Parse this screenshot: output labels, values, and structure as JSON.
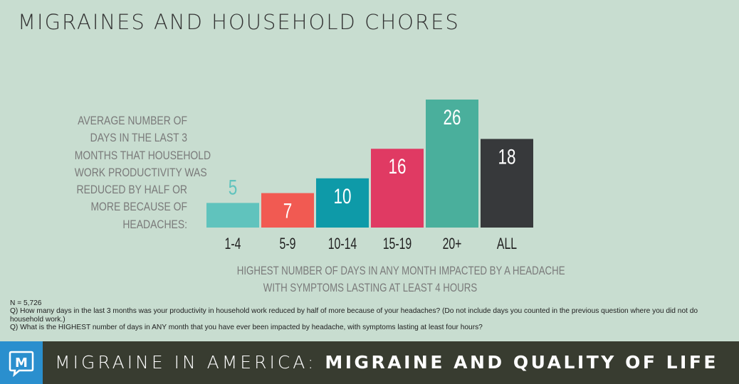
{
  "title": "MIGRAINES AND HOUSEHOLD CHORES",
  "y_label_lines": [
    "AVERAGE NUMBER OF",
    "DAYS IN THE LAST 3",
    "MONTHS THAT HOUSEHOLD",
    "WORK PRODUCTIVITY WAS",
    "REDUCED BY HALF OR",
    "MORE BECAUSE OF",
    "HEADACHES:"
  ],
  "x_label_lines": [
    "HIGHEST NUMBER OF DAYS IN ANY MONTH IMPACTED BY A HEADACHE",
    "WITH SYMPTOMS LASTING AT LEAST 4 HOURS"
  ],
  "chart_data": {
    "type": "bar",
    "categories": [
      "1-4",
      "5-9",
      "10-14",
      "15-19",
      "20+",
      "ALL"
    ],
    "values": [
      5,
      7,
      10,
      16,
      26,
      18
    ],
    "bar_colors": [
      "#60c3bd",
      "#f15a52",
      "#0e9aa8",
      "#e03a63",
      "#4aaf9c",
      "#37393b"
    ],
    "label_colors": [
      "#60c3bd",
      "#ffffff",
      "#ffffff",
      "#ffffff",
      "#ffffff",
      "#ffffff"
    ],
    "xlabel": "HIGHEST NUMBER OF DAYS IN ANY MONTH IMPACTED BY A HEADACHE WITH SYMPTOMS LASTING AT LEAST 4 HOURS",
    "ylabel": "AVERAGE NUMBER OF DAYS IN THE LAST 3 MONTHS THAT HOUSEHOLD WORK PRODUCTIVITY WAS REDUCED BY HALF OR MORE BECAUSE OF HEADACHES:",
    "ylim": [
      0,
      26
    ],
    "grid": false,
    "legend": "none"
  },
  "notes": {
    "n": "N = 5,726",
    "q1": "Q) How many days in the last 3 months was your productivity in household work reduced by half of more because of your headaches? (Do not include days you counted in the previous question where you did not do household work.)",
    "q2": "Q) What is the HIGHEST number of days in ANY month that you have ever been impacted by headache, with symptoms lasting at least four hours?"
  },
  "footer": {
    "logo_letter": "M",
    "series_label": "MIGRAINE IN AMERICA:",
    "topic": "MIGRAINE AND QUALITY OF LIFE"
  },
  "colors": {
    "background": "#c8ddd0",
    "footer_bg": "#383c30",
    "logo_bg": "#2a8fce"
  }
}
